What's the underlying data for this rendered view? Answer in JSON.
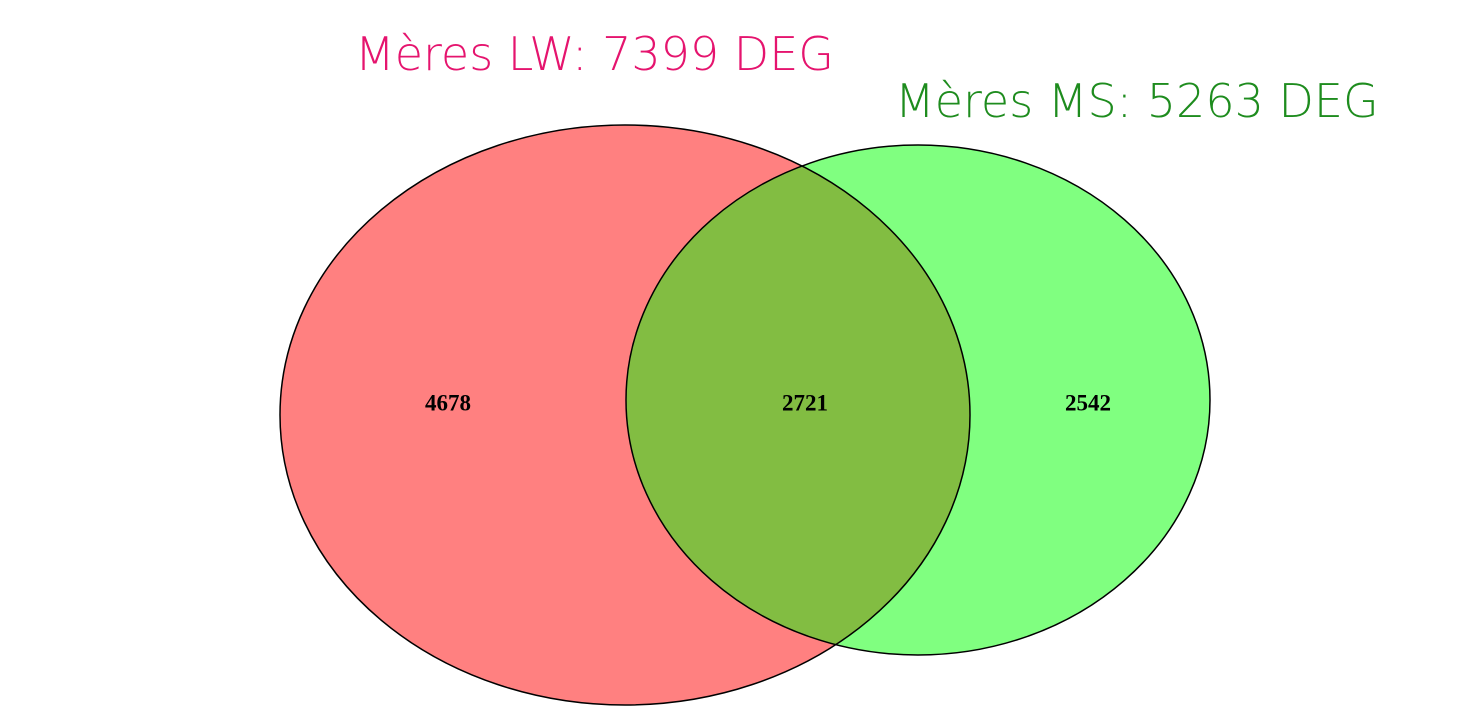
{
  "sets": [
    {
      "label": "Mères LW: 7399 DEG"
    },
    {
      "label": "Mères MS: 5263 DEG"
    }
  ],
  "regions": {
    "lw_only": 4678,
    "both": 2721,
    "ms_only": 2542
  }
}
